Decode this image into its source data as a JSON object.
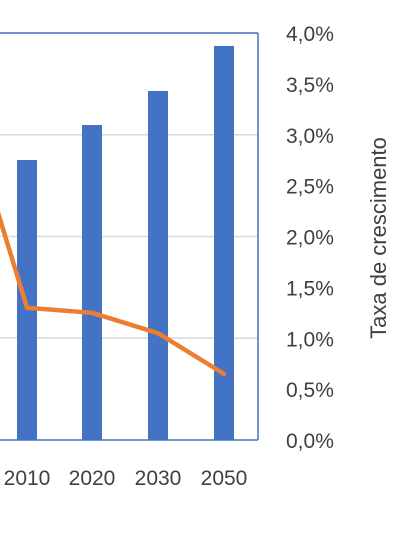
{
  "chart_data": {
    "type": "bar",
    "categories": [
      "2010",
      "2020",
      "2030",
      "2050"
    ],
    "series": [
      {
        "type": "bar",
        "color": "#4472C4",
        "values": [
          null,
          null,
          null,
          null
        ]
      },
      {
        "type": "line",
        "axis": "right",
        "color": "#ED7D31",
        "values": [
          1.3,
          1.25,
          1.05,
          0.65
        ]
      }
    ],
    "y2label": "Taxa de crescimento",
    "y2lim": [
      0,
      4.0
    ],
    "y2ticks": [
      "0,0%",
      "0,5%",
      "1,0%",
      "1,5%",
      "2,0%",
      "2,5%",
      "3,0%",
      "3,5%",
      "4,0%"
    ],
    "gridlines": true,
    "bar_relative_heights_note": null
  }
}
